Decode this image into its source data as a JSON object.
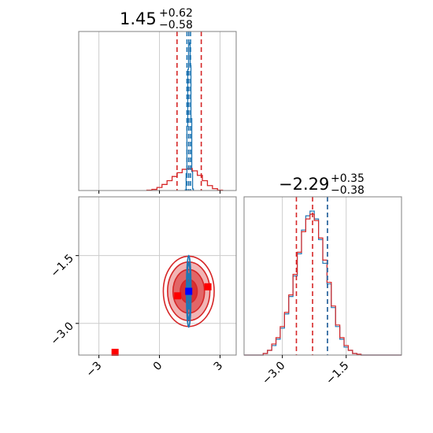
{
  "figure": {
    "background": "#ffffff",
    "axes_edge_color": "#808080",
    "grid_color": "#cccccc"
  },
  "chart_data": [
    {
      "type": "histogram",
      "panel": "x1 marginal (top-left)",
      "title": {
        "main": "1.45",
        "sup": "+0.62",
        "sub": "−0.58"
      },
      "xlim": [
        -4.0,
        3.8
      ],
      "ylim": [
        0,
        4.2
      ],
      "grid": true,
      "series": [
        {
          "color": "#1f77b4",
          "style": "step",
          "x": [
            1.3,
            1.34,
            1.38,
            1.42,
            1.46,
            1.5,
            1.54,
            1.58,
            1.62,
            1.66
          ],
          "values": [
            0.02,
            0.45,
            1.7,
            3.2,
            3.85,
            3.9,
            3.3,
            1.9,
            0.5,
            0.04
          ]
        },
        {
          "color": "#d62728",
          "style": "step",
          "x": [
            -0.5,
            -0.25,
            0.0,
            0.25,
            0.5,
            0.75,
            1.0,
            1.25,
            1.5,
            1.75,
            2.0,
            2.25,
            2.5,
            2.75,
            3.0
          ],
          "values": [
            0.01,
            0.03,
            0.08,
            0.16,
            0.26,
            0.37,
            0.47,
            0.56,
            0.58,
            0.52,
            0.4,
            0.26,
            0.13,
            0.05,
            0.01
          ]
        }
      ],
      "vlines": [
        {
          "x": 0.87,
          "color": "#d62728"
        },
        {
          "x": 1.45,
          "color": "#d62728"
        },
        {
          "x": 2.07,
          "color": "#d62728"
        },
        {
          "x": 1.36,
          "color": "#1f77b4"
        },
        {
          "x": 1.45,
          "color": "#1f77b4"
        },
        {
          "x": 1.54,
          "color": "#1f77b4"
        }
      ]
    },
    {
      "type": "histogram",
      "panel": "x2 marginal (bottom-right)",
      "title": {
        "main": "−2.29",
        "sup": "+0.35",
        "sub": "−0.38"
      },
      "xlim": [
        -3.9,
        -0.2
      ],
      "ylim": [
        0,
        1.0
      ],
      "xticks": [
        -3.0,
        -1.5
      ],
      "xticklabels": [
        "−3.0",
        "−1.5"
      ],
      "grid": true,
      "series": [
        {
          "color": "#1f77b4",
          "style": "step",
          "x": [
            -3.4,
            -3.3,
            -3.2,
            -3.1,
            -3.0,
            -2.9,
            -2.8,
            -2.7,
            -2.6,
            -2.5,
            -2.4,
            -2.3,
            -2.2,
            -2.1,
            -2.0,
            -1.9,
            -1.8,
            -1.7,
            -1.6,
            -1.5,
            -1.4,
            -1.3,
            -1.2
          ],
          "values": [
            0.01,
            0.03,
            0.06,
            0.1,
            0.17,
            0.26,
            0.37,
            0.5,
            0.64,
            0.79,
            0.88,
            0.91,
            0.86,
            0.73,
            0.58,
            0.45,
            0.3,
            0.18,
            0.1,
            0.05,
            0.03,
            0.01,
            0.005
          ]
        },
        {
          "color": "#d62728",
          "style": "step",
          "x": [
            -3.4,
            -3.3,
            -3.2,
            -3.1,
            -3.0,
            -2.9,
            -2.8,
            -2.7,
            -2.6,
            -2.5,
            -2.4,
            -2.3,
            -2.2,
            -2.1,
            -2.0,
            -1.9,
            -1.8,
            -1.7,
            -1.6,
            -1.5,
            -1.4,
            -1.3,
            -1.2
          ],
          "values": [
            0.01,
            0.03,
            0.07,
            0.11,
            0.18,
            0.27,
            0.38,
            0.51,
            0.65,
            0.78,
            0.86,
            0.89,
            0.85,
            0.74,
            0.6,
            0.46,
            0.31,
            0.19,
            0.11,
            0.06,
            0.03,
            0.01,
            0.005
          ]
        }
      ],
      "vlines": [
        {
          "x": -2.67,
          "color": "#d62728"
        },
        {
          "x": -2.29,
          "color": "#d62728"
        },
        {
          "x": -1.94,
          "color": "#d62728"
        },
        {
          "x": -1.94,
          "color": "#1f77b4"
        }
      ]
    },
    {
      "type": "contour",
      "panel": "joint x1 vs x2 (bottom-left)",
      "xlim": [
        -4.0,
        3.8
      ],
      "ylim": [
        -3.7,
        -0.2
      ],
      "xticks": [
        -3,
        0,
        3
      ],
      "xticklabels": [
        "−3",
        "0",
        "3"
      ],
      "yticks": [
        -3.0,
        -1.5
      ],
      "yticklabels": [
        "−3.0",
        "−1.5"
      ],
      "grid": true,
      "contour_sets": [
        {
          "color": "#d62728",
          "center": [
            1.45,
            -2.29
          ],
          "sigma": [
            0.6,
            0.37
          ],
          "levels": [
            {
              "radius": 0.7,
              "alpha": 0.85
            },
            {
              "radius": 1.3,
              "alpha": 0.55
            },
            {
              "radius": 1.75,
              "alpha": 0.35
            },
            {
              "radius": 2.1,
              "alpha": 0.0
            }
          ]
        },
        {
          "color": "#1f77b4",
          "center": [
            1.45,
            -2.29
          ],
          "sigma": [
            0.045,
            0.33
          ],
          "levels": [
            {
              "radius": 0.6,
              "alpha": 0.0
            },
            {
              "radius": 1.2,
              "alpha": 0.0
            },
            {
              "radius": 1.9,
              "alpha": 0.0
            },
            {
              "radius": 2.4,
              "alpha": 0.0
            }
          ]
        }
      ],
      "markers": [
        {
          "x": 1.45,
          "y": -2.29,
          "color": "#0000ff",
          "shape": "square"
        },
        {
          "x": 0.9,
          "y": -2.39,
          "color": "#ff0000",
          "shape": "square"
        },
        {
          "x": 2.4,
          "y": -2.19,
          "color": "#ff0000",
          "shape": "square"
        },
        {
          "x": -2.2,
          "y": -3.64,
          "color": "#ff0000",
          "shape": "square"
        }
      ]
    }
  ]
}
